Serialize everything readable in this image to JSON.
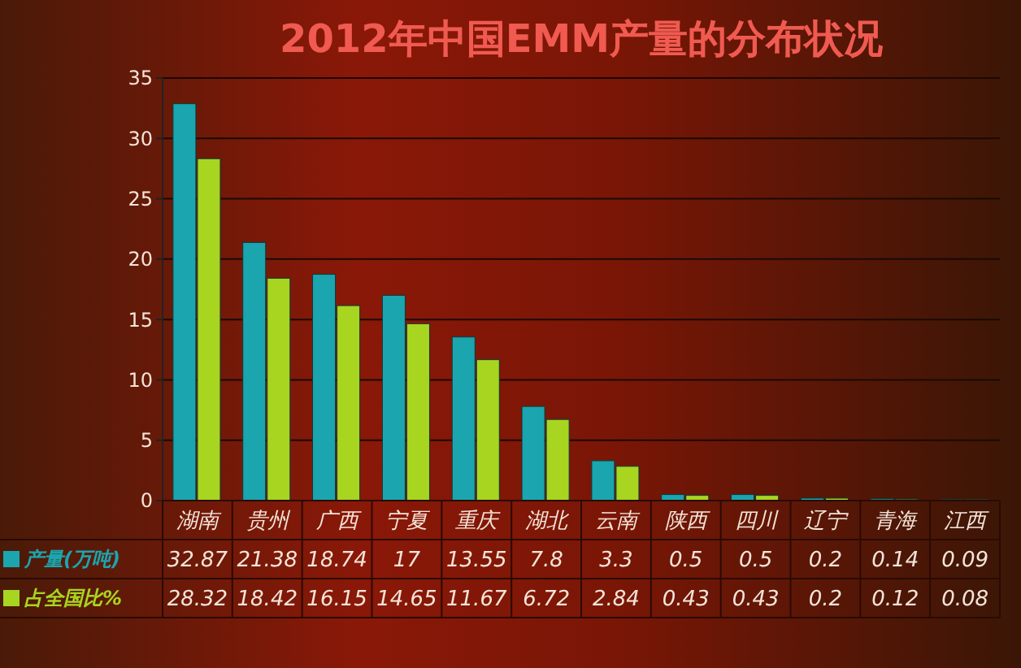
{
  "chart_data": {
    "type": "bar",
    "title": "2012年中国EMM产量的分布状况",
    "categories": [
      "湖南",
      "贵州",
      "广西",
      "宁夏",
      "重庆",
      "湖北",
      "云南",
      "陕西",
      "四川",
      "辽宁",
      "青海",
      "江西"
    ],
    "series": [
      {
        "name": "产量(万吨)",
        "color": "#1ba5ae",
        "values": [
          32.87,
          21.38,
          18.74,
          17,
          13.55,
          7.8,
          3.3,
          0.5,
          0.5,
          0.2,
          0.14,
          0.09
        ]
      },
      {
        "name": "占全国比%",
        "color": "#a8d520",
        "values": [
          28.32,
          18.42,
          16.15,
          14.65,
          11.67,
          6.72,
          2.84,
          0.43,
          0.43,
          0.2,
          0.12,
          0.08
        ]
      }
    ],
    "ylim": [
      0,
      35
    ],
    "yticks": [
      0,
      5,
      10,
      15,
      20,
      25,
      30,
      35
    ],
    "grid": "y",
    "data_labels": true
  }
}
